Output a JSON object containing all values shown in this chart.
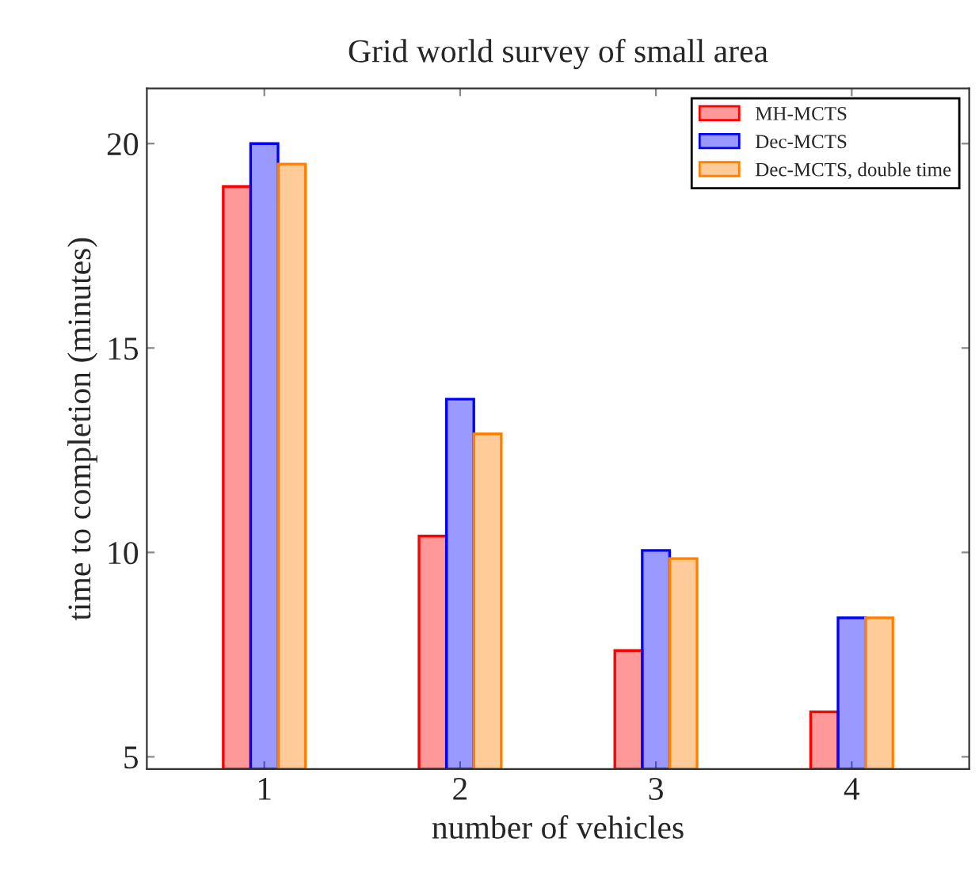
{
  "chart_data": {
    "type": "bar",
    "title": "Grid world survey of small area",
    "xlabel": "number of vehicles",
    "ylabel": "time to completion (minutes)",
    "x": [
      1,
      2,
      3,
      4
    ],
    "series": [
      {
        "name": "MH-MCTS",
        "color": "#ff0000",
        "values": [
          18.95,
          10.4,
          7.6,
          6.1
        ]
      },
      {
        "name": "Dec-MCTS",
        "color": "#0000ff",
        "values": [
          20,
          13.75,
          10.05,
          8.4
        ]
      },
      {
        "name": "Dec-MCTS, double time",
        "color": "#ff8000",
        "values": [
          19.5,
          12.9,
          9.85,
          8.4
        ]
      }
    ],
    "xlim": [
      0.4,
      4.6
    ],
    "xticks": [
      1,
      2,
      3,
      4
    ],
    "ylim": [
      4.7,
      21.35
    ],
    "yticks": [
      5,
      10,
      15,
      20
    ],
    "legend": "top right",
    "grid": false
  }
}
